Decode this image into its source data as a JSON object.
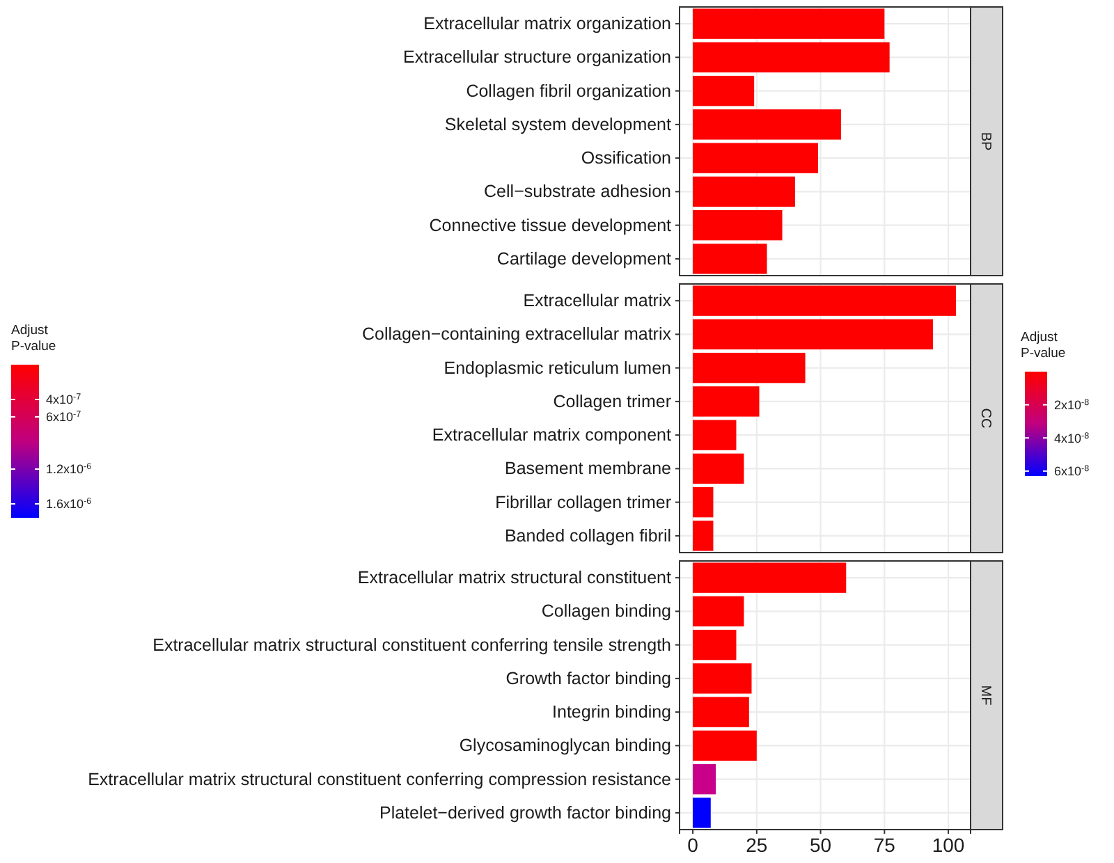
{
  "chart_data": [
    {
      "type": "bar",
      "orientation": "horizontal",
      "annotations": [
        "BP"
      ],
      "categories": [
        "Extracellular matrix organization",
        "Extracellular structure organization",
        "Collagen fibril organization",
        "Skeletal system development",
        "Ossification",
        "Cell−substrate adhesion",
        "Connective tissue development",
        "Cartilage development"
      ],
      "values": [
        75,
        77,
        24,
        58,
        49,
        40,
        35,
        29
      ],
      "colors": [
        "#ff0000",
        "#ff0000",
        "#ff0000",
        "#ff0000",
        "#ff0000",
        "#ff0000",
        "#ff0000",
        "#ff0000"
      ],
      "xlim": [
        -5.2,
        108.7
      ],
      "xticks": [
        0,
        25,
        50,
        75,
        100
      ],
      "grid": true,
      "tick_labels": "y"
    },
    {
      "type": "bar",
      "orientation": "horizontal",
      "annotations": [
        "CC"
      ],
      "categories": [
        "Extracellular matrix",
        "Collagen−containing extracellular matrix",
        "Endoplasmic reticulum lumen",
        "Collagen trimer",
        "Extracellular matrix component",
        "Basement membrane",
        "Fibrillar collagen trimer",
        "Banded collagen fibril"
      ],
      "values": [
        103,
        94,
        44,
        26,
        17,
        20,
        8,
        8
      ],
      "colors": [
        "#ff0000",
        "#ff0000",
        "#ff0000",
        "#ff0000",
        "#ff0000",
        "#ff0000",
        "#ff0000",
        "#ff0000"
      ],
      "xlim": [
        -5.2,
        108.7
      ],
      "xticks": [
        0,
        25,
        50,
        75,
        100
      ],
      "grid": true,
      "tick_labels": "y",
      "clabel": "Adjust P-value",
      "clim": [
        0,
        6.3e-08
      ],
      "cticks": [
        {
          "value": 2e-08,
          "label": "2x10$^{-8}$"
        },
        {
          "value": 4e-08,
          "label": "4x10$^{-8}$"
        },
        {
          "value": 6e-08,
          "label": "6x10$^{-8}$"
        }
      ]
    },
    {
      "type": "bar",
      "orientation": "horizontal",
      "annotations": [
        "MF"
      ],
      "categories": [
        "Extracellular matrix structural constituent",
        "Collagen binding",
        "Extracellular matrix structural constituent conferring tensile strength",
        "Growth factor binding",
        "Integrin binding",
        "Glycosaminoglycan binding",
        "Extracellular matrix structural constituent conferring compression resistance",
        "Platelet−derived growth factor binding"
      ],
      "values": [
        60,
        20,
        17,
        23,
        22,
        25,
        9,
        7
      ],
      "colors": [
        "#ff0000",
        "#ff0000",
        "#ff0000",
        "#ff0000",
        "#ff0000",
        "#ff0000",
        "#c8008a",
        "#0000ff"
      ],
      "xlim": [
        -5.2,
        108.7
      ],
      "xticks": [
        0,
        25,
        50,
        75,
        100
      ],
      "grid": true,
      "clabel": "Adjust P-value",
      "clim": [
        0,
        1.76e-06
      ],
      "cticks": [
        {
          "value": 4e-07,
          "label": "4x10$^{-7}$"
        },
        {
          "value": 6e-07,
          "label": "6x10$^{-7}$"
        },
        {
          "value": 1.2e-06,
          "label": "1.2x10$^{-6}$"
        },
        {
          "value": 1.6e-06,
          "label": "1.6x10$^{-6}$"
        }
      ]
    }
  ]
}
